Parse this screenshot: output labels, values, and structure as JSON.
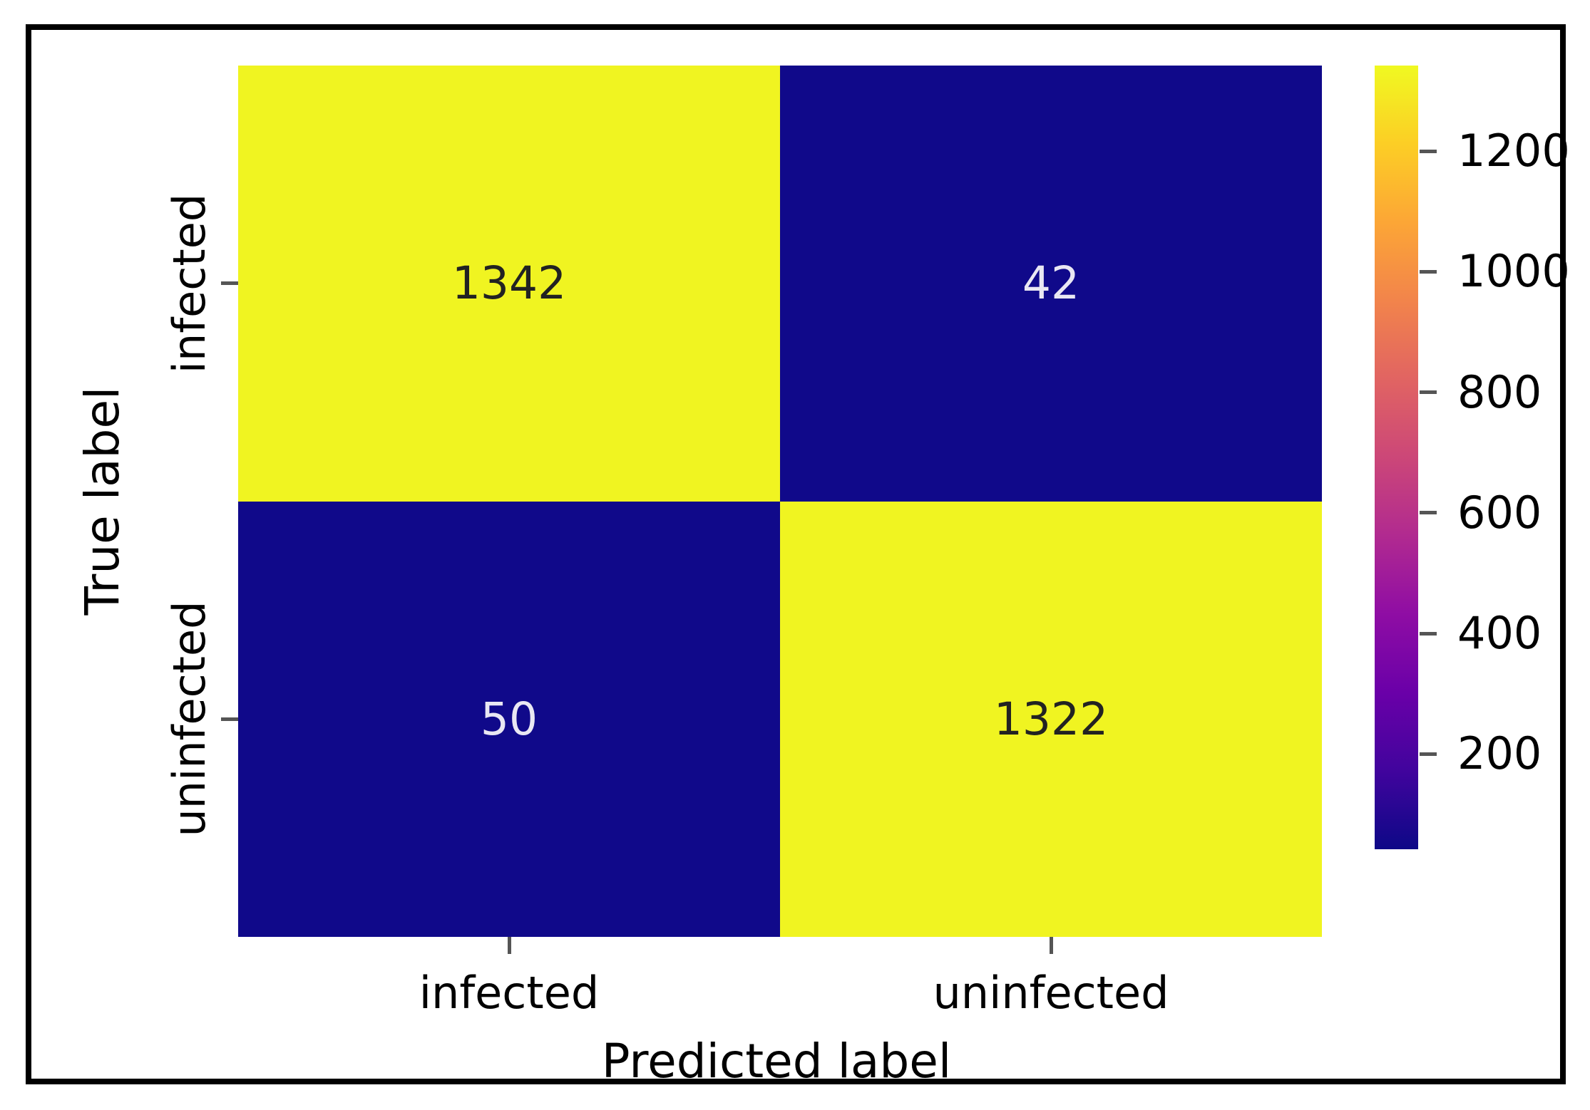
{
  "figure": {
    "background_color": "#ffffff",
    "frame_border_color": "#000000"
  },
  "chart_data": {
    "type": "heatmap",
    "title": "",
    "xlabel": "Predicted label",
    "ylabel": "True label",
    "x_categories": [
      "infected",
      "uninfected"
    ],
    "y_categories": [
      "infected",
      "uninfected"
    ],
    "matrix": [
      [
        1342,
        42
      ],
      [
        50,
        1322
      ]
    ],
    "colormap": "plasma",
    "vmin": 42,
    "vmax": 1342,
    "colorbar_ticks": [
      1200,
      1000,
      800,
      600,
      400,
      200
    ],
    "legend_position": "right",
    "grid": false,
    "cell_colors": [
      [
        "#f0f421",
        "#10098a"
      ],
      [
        "#10098a",
        "#f0f421"
      ]
    ],
    "annotation_colors": [
      [
        "#222222",
        "#e9e7f3"
      ],
      [
        "#e9e7f3",
        "#222222"
      ]
    ],
    "colormap_stops_bottom_to_top": [
      "#0d0887",
      "#41049d",
      "#6a00a8",
      "#8f0da4",
      "#b12a90",
      "#cc4778",
      "#e16462",
      "#f2844b",
      "#fca636",
      "#fcce25",
      "#f0f921"
    ]
  }
}
